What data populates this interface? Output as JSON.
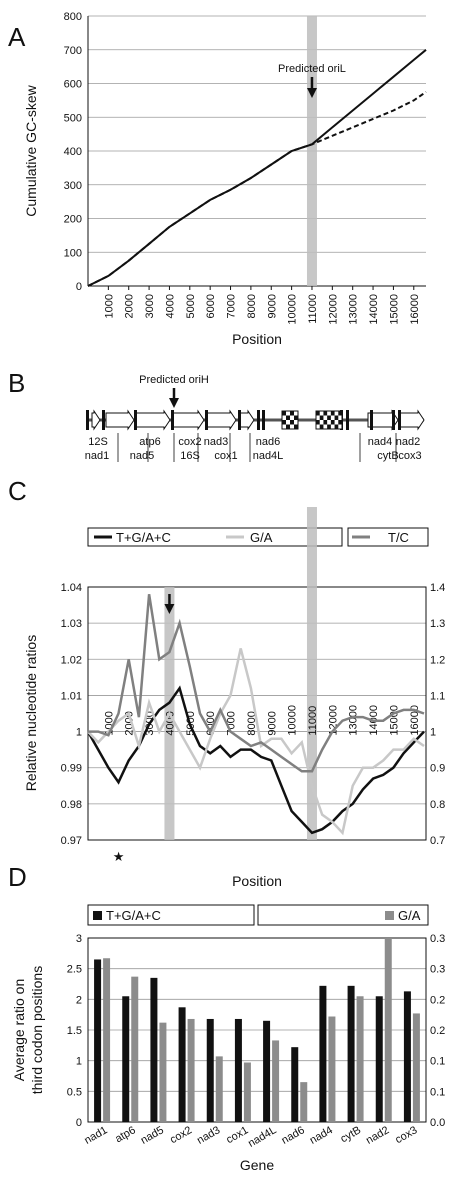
{
  "chart_data": [
    {
      "panel": "A",
      "type": "line",
      "ylabel": "Cumulative GC-skew",
      "xlabel": "Position",
      "xlim": [
        0,
        16600
      ],
      "ylim": [
        0,
        800
      ],
      "x_ticks": [
        1000,
        2000,
        3000,
        4000,
        5000,
        6000,
        7000,
        8000,
        9000,
        10000,
        11000,
        12000,
        13000,
        14000,
        15000,
        16000
      ],
      "y_ticks": [
        0,
        100,
        200,
        300,
        400,
        500,
        600,
        700,
        800
      ],
      "annotation": "Predicted oriL",
      "series": [
        {
          "style": "solid",
          "x": [
            0,
            1000,
            2000,
            3000,
            4000,
            5000,
            6000,
            7000,
            8000,
            9000,
            10000,
            11000,
            12000,
            13000,
            14000,
            15000,
            16000,
            16600
          ],
          "values": [
            0,
            30,
            75,
            125,
            175,
            215,
            255,
            285,
            320,
            360,
            400,
            420,
            470,
            520,
            570,
            620,
            670,
            700
          ]
        },
        {
          "style": "dashed",
          "x": [
            0,
            1000,
            2000,
            3000,
            4000,
            5000,
            6000,
            7000,
            8000,
            9000,
            10000,
            11000,
            12000,
            13000,
            14000,
            15000,
            16000,
            16600
          ],
          "values": [
            0,
            30,
            75,
            125,
            175,
            215,
            255,
            285,
            320,
            360,
            400,
            420,
            445,
            470,
            495,
            520,
            550,
            575
          ]
        }
      ]
    },
    {
      "panel": "B",
      "type": "diagram",
      "annotation": "Predicted oriH",
      "genes_top": [
        "12S",
        "atp6",
        "cox2",
        "nad3",
        "nad6",
        "nad4",
        "nad2"
      ],
      "genes_bottom": [
        "nad1",
        "nad5",
        "16S",
        "cox1",
        "nad4L",
        "cytB",
        "cox3"
      ]
    },
    {
      "panel": "C",
      "type": "line",
      "ylabel": "Relative nucleotide ratios",
      "xlabel": "Position",
      "ylim_left": [
        0.97,
        1.04
      ],
      "ylim_right": [
        0.7,
        1.4
      ],
      "y_ticks_left": [
        "0.97",
        "0.98",
        "0.99",
        "1",
        "1.01",
        "1.02",
        "1.03",
        "1.04"
      ],
      "y_ticks_right": [
        "0.7",
        "0.8",
        "0.9",
        "1",
        "1.1",
        "1.2",
        "1.3",
        "1.4"
      ],
      "x_tick_labels": [
        "1000",
        "2000",
        "3000",
        "4000",
        "5000",
        "6000",
        "7000",
        "8000",
        "9000",
        "10000",
        "11000",
        "12000",
        "13000",
        "14000",
        "15000",
        "16000"
      ],
      "legend": [
        "T+G/A+C",
        "G/A",
        "T/C"
      ],
      "marker": "★",
      "series": [
        {
          "name": "T+G/A+C",
          "axis": "left",
          "color": "#111111",
          "x": [
            0,
            500,
            1000,
            1500,
            2000,
            2500,
            3000,
            3500,
            4000,
            4500,
            5000,
            5500,
            6000,
            6500,
            7000,
            7500,
            8000,
            8500,
            9000,
            9500,
            10000,
            10500,
            11000,
            11500,
            12000,
            12500,
            13000,
            13500,
            14000,
            14500,
            15000,
            15500,
            16000,
            16500
          ],
          "values": [
            1.0,
            0.995,
            0.99,
            0.986,
            0.992,
            0.996,
            1.002,
            1.006,
            1.008,
            1.012,
            1.002,
            0.996,
            0.994,
            0.996,
            0.993,
            0.995,
            0.995,
            0.993,
            0.992,
            0.985,
            0.978,
            0.975,
            0.972,
            0.973,
            0.975,
            0.978,
            0.98,
            0.984,
            0.987,
            0.988,
            0.99,
            0.994,
            0.997,
            1.0
          ]
        },
        {
          "name": "G/A",
          "axis": "right",
          "color": "#c8c8c8",
          "x": [
            0,
            500,
            1000,
            1500,
            2000,
            2500,
            3000,
            3500,
            4000,
            4500,
            5000,
            5500,
            6000,
            6500,
            7000,
            7500,
            8000,
            8500,
            9000,
            9500,
            10000,
            10500,
            11000,
            11500,
            12000,
            12500,
            13000,
            13500,
            14000,
            14500,
            15000,
            15500,
            16000,
            16500
          ],
          "values": [
            1.0,
            0.97,
            1.0,
            1.03,
            1.05,
            0.96,
            1.08,
            1.0,
            1.05,
            1.0,
            0.95,
            0.9,
            0.98,
            1.05,
            1.1,
            1.23,
            1.12,
            0.96,
            0.98,
            0.98,
            0.94,
            0.97,
            0.85,
            0.77,
            0.75,
            0.72,
            0.85,
            0.9,
            0.9,
            0.92,
            0.95,
            0.95,
            0.98,
            0.96
          ]
        },
        {
          "name": "T/C",
          "axis": "right",
          "color": "#808080",
          "x": [
            0,
            500,
            1000,
            1500,
            2000,
            2500,
            3000,
            3500,
            4000,
            4500,
            5000,
            5500,
            6000,
            6500,
            7000,
            7500,
            8000,
            8500,
            9000,
            9500,
            10000,
            10500,
            11000,
            11500,
            12000,
            12500,
            13000,
            13500,
            14000,
            14500,
            15000,
            15500,
            16000,
            16500
          ],
          "values": [
            1.0,
            1.0,
            0.99,
            1.05,
            1.2,
            1.04,
            1.38,
            1.2,
            1.22,
            1.3,
            1.18,
            1.05,
            1.0,
            1.06,
            1.0,
            0.98,
            0.96,
            0.97,
            0.95,
            0.93,
            0.91,
            0.89,
            0.89,
            0.95,
            1.0,
            1.03,
            1.04,
            1.04,
            1.03,
            1.03,
            1.05,
            1.06,
            1.06,
            1.05
          ]
        }
      ]
    },
    {
      "panel": "D",
      "type": "bar",
      "ylabel": "Average ratio on third codon positions",
      "ylabel_line1": "Average ratio on",
      "ylabel_line2": "third codon positions",
      "xlabel": "Gene",
      "categories": [
        "nad1",
        "atp6",
        "nad5",
        "cox2",
        "nad3",
        "cox1",
        "nad4L",
        "nad6",
        "nad4",
        "cytB",
        "nad2",
        "cox3"
      ],
      "ylim_left": [
        0,
        3
      ],
      "ylim_right": [
        0,
        0.3
      ],
      "y_ticks_left": [
        "0",
        "0.5",
        "1",
        "1.5",
        "2",
        "2.5",
        "3"
      ],
      "y_ticks_right": [
        "0.0",
        "0.1",
        "0.1",
        "0.2",
        "0.2",
        "0.3",
        "0.3"
      ],
      "legend": [
        "T+G/A+C",
        "G/A"
      ],
      "series": [
        {
          "name": "T+G/A+C",
          "axis": "left",
          "color": "#111111",
          "values": [
            2.65,
            2.05,
            2.35,
            1.87,
            1.68,
            1.68,
            1.65,
            1.22,
            2.22,
            2.22,
            2.05,
            2.13
          ]
        },
        {
          "name": "G/A",
          "axis": "right",
          "color": "#8c8c8c",
          "values": [
            0.267,
            0.237,
            0.162,
            0.168,
            0.107,
            0.097,
            0.133,
            0.065,
            0.172,
            0.205,
            0.3,
            0.177
          ]
        }
      ]
    }
  ],
  "labels": {
    "A": "A",
    "B": "B",
    "C": "C",
    "D": "D"
  }
}
